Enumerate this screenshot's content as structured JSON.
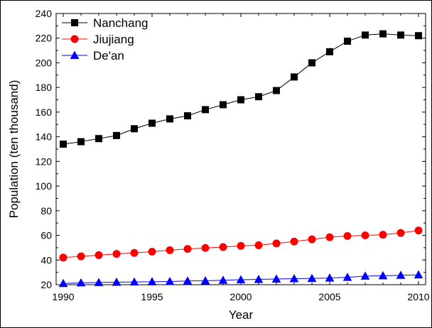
{
  "chart_data": {
    "type": "line",
    "title": "",
    "xlabel": "Year",
    "ylabel": "Population (ten thousand)",
    "xlim": [
      1990,
      2010
    ],
    "ylim": [
      20,
      240
    ],
    "x_ticks": [
      1990,
      1995,
      2000,
      2005,
      2010
    ],
    "y_ticks": [
      20,
      40,
      60,
      80,
      100,
      120,
      140,
      160,
      180,
      200,
      220,
      240
    ],
    "grid": false,
    "legend_position": "top-left",
    "x": [
      1990,
      1991,
      1992,
      1993,
      1994,
      1995,
      1996,
      1997,
      1998,
      1999,
      2000,
      2001,
      2002,
      2003,
      2004,
      2005,
      2006,
      2007,
      2008,
      2009,
      2010
    ],
    "series": [
      {
        "name": "Nanchang",
        "color": "#000000",
        "marker": "square",
        "values": [
          134,
          136,
          138.5,
          141,
          146.5,
          151,
          154.5,
          157,
          162,
          166,
          170,
          172.5,
          177.5,
          188.5,
          200,
          209,
          217.5,
          222.5,
          223.5,
          222.5,
          222
        ]
      },
      {
        "name": "Jiujiang",
        "color": "#ff0000",
        "marker": "circle",
        "values": [
          42,
          43,
          44,
          45,
          45.8,
          46.8,
          48,
          49,
          49.8,
          50.5,
          51.5,
          52,
          53.5,
          55,
          56.8,
          58.5,
          59.5,
          60,
          60.5,
          62,
          64
        ]
      },
      {
        "name": "De'an",
        "color": "#0000ff",
        "marker": "triangle",
        "values": [
          21,
          21.5,
          21.8,
          22,
          22.2,
          22.4,
          22.6,
          23,
          23.2,
          23.6,
          24,
          24.3,
          24.6,
          24.9,
          25.1,
          25.4,
          26,
          27,
          27.3,
          27.6,
          28
        ]
      }
    ]
  }
}
